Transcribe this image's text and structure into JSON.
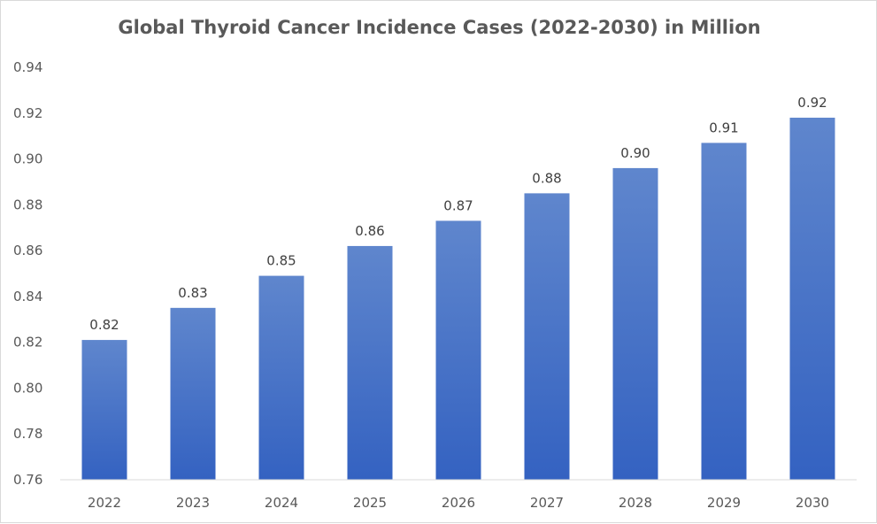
{
  "chart_data": {
    "type": "bar",
    "title": "Global Thyroid Cancer Incidence Cases (2022-2030) in Million",
    "categories": [
      "2022",
      "2023",
      "2024",
      "2025",
      "2026",
      "2027",
      "2028",
      "2029",
      "2030"
    ],
    "values": [
      0.821,
      0.835,
      0.849,
      0.862,
      0.873,
      0.885,
      0.896,
      0.907,
      0.918
    ],
    "data_labels": [
      "0.82",
      "0.83",
      "0.85",
      "0.86",
      "0.87",
      "0.88",
      "0.90",
      "0.91",
      "0.92"
    ],
    "ylim": [
      0.76,
      0.94
    ],
    "yticks": [
      "0.76",
      "0.78",
      "0.80",
      "0.82",
      "0.84",
      "0.86",
      "0.88",
      "0.90",
      "0.92",
      "0.94"
    ],
    "xlabel": "",
    "ylabel": "",
    "grid": false,
    "legend": "none",
    "bar_color_top": "#5f86cd",
    "bar_color_bottom": "#3462c1"
  }
}
